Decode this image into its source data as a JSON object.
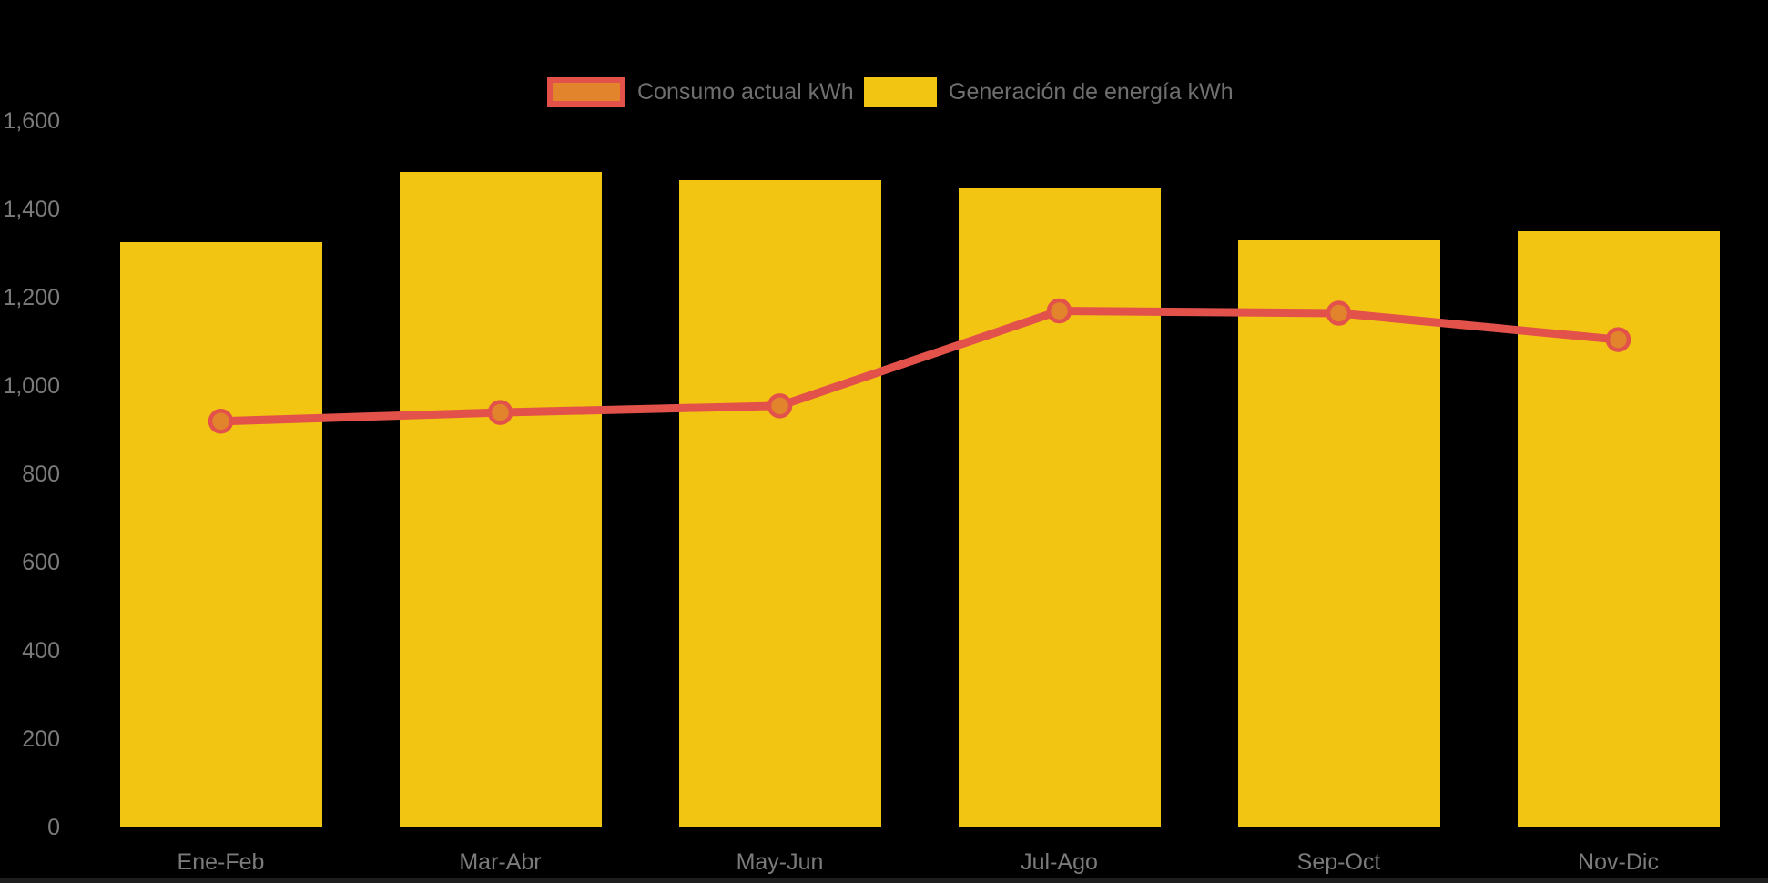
{
  "background_color": "#000000",
  "bottom_strip_color": "#1E1E1E",
  "legend": {
    "items": [
      {
        "label": "Consumo actual kWh",
        "swatch_fill": "#E1842C",
        "swatch_border": "#E2524A"
      },
      {
        "label": "Generación de energía kWh",
        "swatch_fill": "#F2C513",
        "swatch_border": "#F2C513"
      }
    ],
    "text_color": "#6F6F6F"
  },
  "axes": {
    "text_color": "#7B7B7B"
  },
  "chart_data": {
    "type": "bar",
    "subtype": "combo-bar-line",
    "title": "",
    "xlabel": "",
    "ylabel": "",
    "categories": [
      "Ene-Feb",
      "Mar-Abr",
      "May-Jun",
      "Jul-Ago",
      "Sep-Oct",
      "Nov-Dic"
    ],
    "series": [
      {
        "name": "Generación de energía kWh",
        "type": "bar",
        "color": "#F2C513",
        "values": [
          1325,
          1485,
          1465,
          1450,
          1330,
          1350
        ]
      },
      {
        "name": "Consumo actual kWh",
        "type": "line",
        "color": "#E2524A",
        "marker_fill": "#E1842C",
        "values": [
          920,
          940,
          955,
          1170,
          1165,
          1105
        ]
      }
    ],
    "y_ticks": [
      {
        "value": 0,
        "label": "0"
      },
      {
        "value": 200,
        "label": "200"
      },
      {
        "value": 400,
        "label": "400"
      },
      {
        "value": 600,
        "label": "600"
      },
      {
        "value": 800,
        "label": "800"
      },
      {
        "value": 1000,
        "label": "1,000"
      },
      {
        "value": 1200,
        "label": "1,200"
      },
      {
        "value": 1400,
        "label": "1,400"
      },
      {
        "value": 1600,
        "label": "1,600"
      }
    ],
    "ylim": [
      0,
      1600
    ],
    "grid": false,
    "legend_position": "top-center"
  }
}
